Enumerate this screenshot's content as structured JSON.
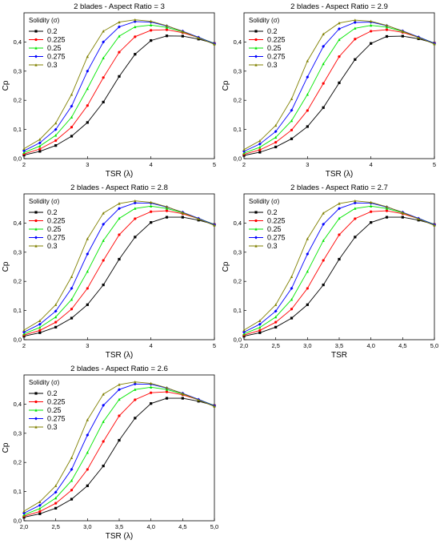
{
  "colors": [
    "#000000",
    "#ff0000",
    "#00e600",
    "#0000ff",
    "#808000"
  ],
  "chart_data": [
    {
      "type": "line",
      "title": "2 blades - Aspect Ratio = 3",
      "xlabel": "TSR (λ)",
      "ylabel": "Cp",
      "xlim": [
        2,
        5
      ],
      "ylim": [
        0,
        0.5
      ],
      "xticks": [
        "2",
        "3",
        "4",
        "5"
      ],
      "yticks": [
        "0,0",
        "0,1",
        "0,2",
        "0,3",
        "0,4"
      ],
      "legend_title": "Solidity (σ)",
      "legend_position": "top-left",
      "series": [
        {
          "name": "0.2",
          "x": [
            2.0,
            2.25,
            2.5,
            2.75,
            3.0,
            3.25,
            3.5,
            3.75,
            4.0,
            4.25,
            4.5,
            4.75,
            5.0
          ],
          "y": [
            0.012,
            0.025,
            0.045,
            0.077,
            0.124,
            0.194,
            0.282,
            0.358,
            0.405,
            0.421,
            0.42,
            0.41,
            0.395
          ]
        },
        {
          "name": "0.225",
          "x": [
            2.0,
            2.25,
            2.5,
            2.75,
            3.0,
            3.25,
            3.5,
            3.75,
            4.0,
            4.25,
            4.5,
            4.75,
            5.0
          ],
          "y": [
            0.016,
            0.033,
            0.062,
            0.108,
            0.182,
            0.278,
            0.365,
            0.418,
            0.44,
            0.442,
            0.432,
            0.415,
            0.395
          ]
        },
        {
          "name": "0.25",
          "x": [
            2.0,
            2.25,
            2.5,
            2.75,
            3.0,
            3.25,
            3.5,
            3.75,
            4.0,
            4.25,
            4.5,
            4.75,
            5.0
          ],
          "y": [
            0.021,
            0.043,
            0.08,
            0.142,
            0.24,
            0.345,
            0.42,
            0.452,
            0.458,
            0.45,
            0.435,
            0.416,
            0.395
          ]
        },
        {
          "name": "0.275",
          "x": [
            2.0,
            2.25,
            2.5,
            2.75,
            3.0,
            3.25,
            3.5,
            3.75,
            4.0,
            4.25,
            4.5,
            4.75,
            5.0
          ],
          "y": [
            0.027,
            0.054,
            0.1,
            0.18,
            0.3,
            0.4,
            0.452,
            0.47,
            0.468,
            0.455,
            0.437,
            0.416,
            0.394
          ]
        },
        {
          "name": "0.3",
          "x": [
            2.0,
            2.25,
            2.5,
            2.75,
            3.0,
            3.25,
            3.5,
            3.75,
            4.0,
            4.25,
            4.5,
            4.75,
            5.0
          ],
          "y": [
            0.034,
            0.066,
            0.122,
            0.22,
            0.35,
            0.437,
            0.468,
            0.476,
            0.471,
            0.456,
            0.436,
            0.414,
            0.392
          ]
        }
      ]
    },
    {
      "type": "line",
      "title": "2 blades - Aspect Ratio = 2.9",
      "xlabel": "TSR (λ)",
      "ylabel": "Cp",
      "xlim": [
        2,
        5
      ],
      "ylim": [
        0,
        0.5
      ],
      "xticks": [
        "2",
        "3",
        "4",
        "5"
      ],
      "yticks": [
        "0,0",
        "0,1",
        "0,2",
        "0,3",
        "0,4"
      ],
      "legend_title": "Solidity (σ)",
      "legend_position": "top-left",
      "series": [
        {
          "name": "0.2",
          "x": [
            2.0,
            2.25,
            2.5,
            2.75,
            3.0,
            3.25,
            3.5,
            3.75,
            4.0,
            4.25,
            4.5,
            4.75,
            5.0
          ],
          "y": [
            0.011,
            0.022,
            0.04,
            0.068,
            0.11,
            0.175,
            0.26,
            0.34,
            0.395,
            0.419,
            0.42,
            0.411,
            0.396
          ]
        },
        {
          "name": "0.225",
          "x": [
            2.0,
            2.25,
            2.5,
            2.75,
            3.0,
            3.25,
            3.5,
            3.75,
            4.0,
            4.25,
            4.5,
            4.75,
            5.0
          ],
          "y": [
            0.015,
            0.03,
            0.056,
            0.098,
            0.165,
            0.258,
            0.35,
            0.41,
            0.437,
            0.442,
            0.433,
            0.416,
            0.396
          ]
        },
        {
          "name": "0.25",
          "x": [
            2.0,
            2.25,
            2.5,
            2.75,
            3.0,
            3.25,
            3.5,
            3.75,
            4.0,
            4.25,
            4.5,
            4.75,
            5.0
          ],
          "y": [
            0.019,
            0.039,
            0.073,
            0.13,
            0.22,
            0.325,
            0.408,
            0.447,
            0.457,
            0.451,
            0.436,
            0.417,
            0.396
          ]
        },
        {
          "name": "0.275",
          "x": [
            2.0,
            2.25,
            2.5,
            2.75,
            3.0,
            3.25,
            3.5,
            3.75,
            4.0,
            4.25,
            4.5,
            4.75,
            5.0
          ],
          "y": [
            0.025,
            0.05,
            0.093,
            0.166,
            0.28,
            0.385,
            0.445,
            0.467,
            0.468,
            0.456,
            0.438,
            0.417,
            0.395
          ]
        },
        {
          "name": "0.3",
          "x": [
            2.0,
            2.25,
            2.5,
            2.75,
            3.0,
            3.25,
            3.5,
            3.75,
            4.0,
            4.25,
            4.5,
            4.75,
            5.0
          ],
          "y": [
            0.031,
            0.061,
            0.114,
            0.205,
            0.335,
            0.427,
            0.465,
            0.475,
            0.471,
            0.457,
            0.437,
            0.415,
            0.393
          ]
        }
      ]
    },
    {
      "type": "line",
      "title": "2 blades - Aspect Ratio = 2.8",
      "xlabel": "TSR (λ)",
      "ylabel": "Cp",
      "xlim": [
        2,
        5
      ],
      "ylim": [
        0,
        0.5
      ],
      "xticks": [
        "2",
        "3",
        "4",
        "5"
      ],
      "yticks": [
        "0,0",
        "0,1",
        "0,2",
        "0,3",
        "0,4"
      ],
      "legend_title": "Solidity (σ)",
      "legend_position": "top-left",
      "series": [
        {
          "name": "0.2",
          "x": [
            2.0,
            2.25,
            2.5,
            2.75,
            3.0,
            3.25,
            3.5,
            3.75,
            4.0,
            4.25,
            4.5,
            4.75,
            5.0
          ],
          "y": [
            0.012,
            0.024,
            0.043,
            0.074,
            0.12,
            0.188,
            0.276,
            0.352,
            0.402,
            0.42,
            0.42,
            0.41,
            0.395
          ]
        },
        {
          "name": "0.225",
          "x": [
            2.0,
            2.25,
            2.5,
            2.75,
            3.0,
            3.25,
            3.5,
            3.75,
            4.0,
            4.25,
            4.5,
            4.75,
            5.0
          ],
          "y": [
            0.016,
            0.032,
            0.06,
            0.105,
            0.176,
            0.272,
            0.36,
            0.415,
            0.439,
            0.442,
            0.432,
            0.415,
            0.395
          ]
        },
        {
          "name": "0.25",
          "x": [
            2.0,
            2.25,
            2.5,
            2.75,
            3.0,
            3.25,
            3.5,
            3.75,
            4.0,
            4.25,
            4.5,
            4.75,
            5.0
          ],
          "y": [
            0.02,
            0.042,
            0.078,
            0.138,
            0.234,
            0.34,
            0.416,
            0.45,
            0.458,
            0.45,
            0.435,
            0.416,
            0.395
          ]
        },
        {
          "name": "0.275",
          "x": [
            2.0,
            2.25,
            2.5,
            2.75,
            3.0,
            3.25,
            3.5,
            3.75,
            4.0,
            4.25,
            4.5,
            4.75,
            5.0
          ],
          "y": [
            0.026,
            0.053,
            0.098,
            0.176,
            0.294,
            0.396,
            0.45,
            0.469,
            0.468,
            0.455,
            0.437,
            0.416,
            0.394
          ]
        },
        {
          "name": "0.3",
          "x": [
            2.0,
            2.25,
            2.5,
            2.75,
            3.0,
            3.25,
            3.5,
            3.75,
            4.0,
            4.25,
            4.5,
            4.75,
            5.0
          ],
          "y": [
            0.033,
            0.065,
            0.12,
            0.216,
            0.346,
            0.434,
            0.467,
            0.476,
            0.471,
            0.456,
            0.436,
            0.414,
            0.392
          ]
        }
      ]
    },
    {
      "type": "line",
      "title": "2 blades - Aspect Ratio = 2.7",
      "xlabel": "TSR",
      "ylabel": "Cp",
      "xlim": [
        2,
        5
      ],
      "ylim": [
        0,
        0.5
      ],
      "xticks": [
        "2,0",
        "2,5",
        "3,0",
        "3,5",
        "4,0",
        "4,5",
        "5,0"
      ],
      "yticks": [
        "0,0",
        "0,1",
        "0,2",
        "0,3",
        "0,4"
      ],
      "legend_title": "Solidity (σ)",
      "legend_position": "top-left",
      "series": [
        {
          "name": "0.2",
          "x": [
            2.0,
            2.25,
            2.5,
            2.75,
            3.0,
            3.25,
            3.5,
            3.75,
            4.0,
            4.25,
            4.5,
            4.75,
            5.0
          ],
          "y": [
            0.012,
            0.024,
            0.043,
            0.074,
            0.12,
            0.188,
            0.276,
            0.352,
            0.402,
            0.42,
            0.42,
            0.41,
            0.395
          ]
        },
        {
          "name": "0.225",
          "x": [
            2.0,
            2.25,
            2.5,
            2.75,
            3.0,
            3.25,
            3.5,
            3.75,
            4.0,
            4.25,
            4.5,
            4.75,
            5.0
          ],
          "y": [
            0.016,
            0.032,
            0.06,
            0.105,
            0.176,
            0.272,
            0.36,
            0.415,
            0.439,
            0.442,
            0.432,
            0.415,
            0.395
          ]
        },
        {
          "name": "0.25",
          "x": [
            2.0,
            2.25,
            2.5,
            2.75,
            3.0,
            3.25,
            3.5,
            3.75,
            4.0,
            4.25,
            4.5,
            4.75,
            5.0
          ],
          "y": [
            0.02,
            0.042,
            0.078,
            0.138,
            0.234,
            0.34,
            0.416,
            0.45,
            0.458,
            0.45,
            0.435,
            0.416,
            0.395
          ]
        },
        {
          "name": "0.275",
          "x": [
            2.0,
            2.25,
            2.5,
            2.75,
            3.0,
            3.25,
            3.5,
            3.75,
            4.0,
            4.25,
            4.5,
            4.75,
            5.0
          ],
          "y": [
            0.026,
            0.053,
            0.098,
            0.176,
            0.294,
            0.396,
            0.45,
            0.469,
            0.468,
            0.455,
            0.437,
            0.416,
            0.394
          ]
        },
        {
          "name": "0.3",
          "x": [
            2.0,
            2.25,
            2.5,
            2.75,
            3.0,
            3.25,
            3.5,
            3.75,
            4.0,
            4.25,
            4.5,
            4.75,
            5.0
          ],
          "y": [
            0.033,
            0.065,
            0.12,
            0.216,
            0.346,
            0.434,
            0.467,
            0.476,
            0.471,
            0.456,
            0.436,
            0.414,
            0.392
          ]
        }
      ]
    },
    {
      "type": "line",
      "title": "2 blades - Aspect Ratio = 2.6",
      "xlabel": "TSR (λ)",
      "ylabel": "Cp",
      "xlim": [
        2,
        5
      ],
      "ylim": [
        0,
        0.5
      ],
      "xticks": [
        "2,0",
        "2,5",
        "3,0",
        "3,5",
        "4,0",
        "4,5",
        "5,0"
      ],
      "yticks": [
        "0,0",
        "0,1",
        "0,2",
        "0,3",
        "0,4"
      ],
      "legend_title": "Solidity (σ)",
      "legend_position": "top-left",
      "series": [
        {
          "name": "0.2",
          "x": [
            2.0,
            2.25,
            2.5,
            2.75,
            3.0,
            3.25,
            3.5,
            3.75,
            4.0,
            4.25,
            4.5,
            4.75,
            5.0
          ],
          "y": [
            0.012,
            0.024,
            0.043,
            0.074,
            0.12,
            0.188,
            0.276,
            0.352,
            0.402,
            0.42,
            0.42,
            0.41,
            0.395
          ]
        },
        {
          "name": "0.225",
          "x": [
            2.0,
            2.25,
            2.5,
            2.75,
            3.0,
            3.25,
            3.5,
            3.75,
            4.0,
            4.25,
            4.5,
            4.75,
            5.0
          ],
          "y": [
            0.016,
            0.032,
            0.06,
            0.105,
            0.176,
            0.272,
            0.36,
            0.415,
            0.439,
            0.442,
            0.432,
            0.415,
            0.395
          ]
        },
        {
          "name": "0.25",
          "x": [
            2.0,
            2.25,
            2.5,
            2.75,
            3.0,
            3.25,
            3.5,
            3.75,
            4.0,
            4.25,
            4.5,
            4.75,
            5.0
          ],
          "y": [
            0.02,
            0.042,
            0.078,
            0.138,
            0.234,
            0.34,
            0.416,
            0.45,
            0.458,
            0.45,
            0.435,
            0.416,
            0.395
          ]
        },
        {
          "name": "0.275",
          "x": [
            2.0,
            2.25,
            2.5,
            2.75,
            3.0,
            3.25,
            3.5,
            3.75,
            4.0,
            4.25,
            4.5,
            4.75,
            5.0
          ],
          "y": [
            0.026,
            0.053,
            0.098,
            0.176,
            0.294,
            0.396,
            0.45,
            0.469,
            0.468,
            0.455,
            0.437,
            0.416,
            0.394
          ]
        },
        {
          "name": "0.3",
          "x": [
            2.0,
            2.25,
            2.5,
            2.75,
            3.0,
            3.25,
            3.5,
            3.75,
            4.0,
            4.25,
            4.5,
            4.75,
            5.0
          ],
          "y": [
            0.033,
            0.065,
            0.12,
            0.216,
            0.346,
            0.434,
            0.467,
            0.476,
            0.471,
            0.456,
            0.436,
            0.414,
            0.392
          ]
        }
      ]
    }
  ]
}
